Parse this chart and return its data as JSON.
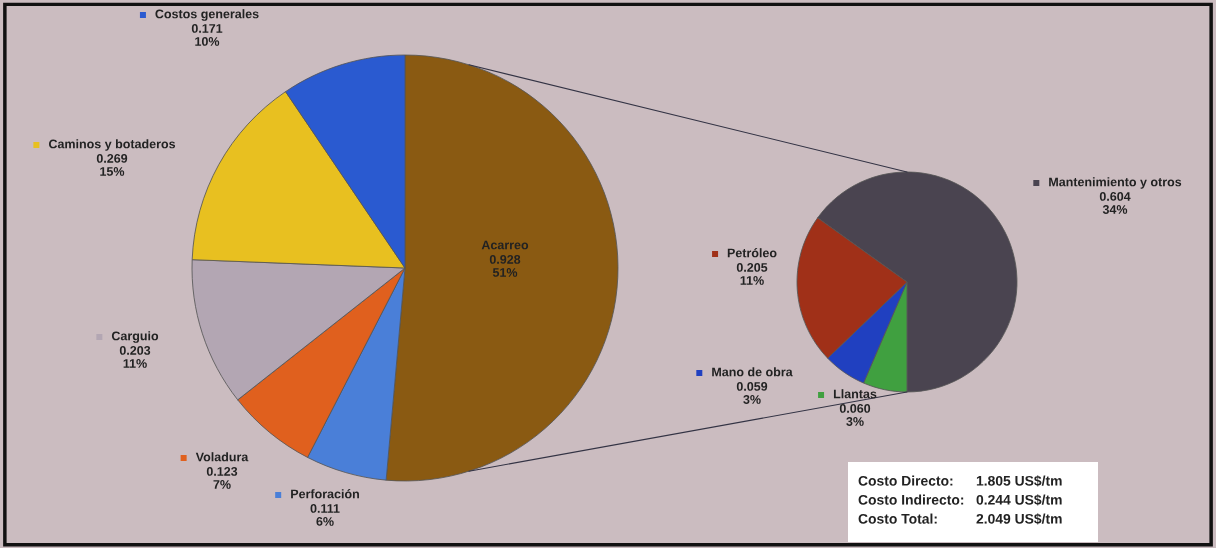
{
  "chart_data": [
    {
      "type": "pie",
      "categories": [
        "Acarreo",
        "Perforación",
        "Voladura",
        "Carguio",
        "Caminos y botaderos",
        "Costos generales"
      ],
      "values": [
        0.928,
        0.111,
        0.123,
        0.203,
        0.269,
        0.171
      ],
      "colors": [
        "#8a5a12",
        "#4a7fd8",
        "#e0601e",
        "#b3a6b3",
        "#e8c020",
        "#2a5ad0"
      ],
      "value_labels": [
        "0.928\n51%",
        "0.111\n6%",
        "0.123\n7%",
        "0.203\n11%",
        "0.269\n15%",
        "0.171\n10%"
      ],
      "legend": "left"
    },
    {
      "type": "pie",
      "categories": [
        "Mantenimiento y otros",
        "Llantas",
        "Mano de obra",
        "Petróleo"
      ],
      "values": [
        0.604,
        0.06,
        0.059,
        0.205
      ],
      "colors": [
        "#4a4450",
        "#40a040",
        "#2040c0",
        "#a03018"
      ],
      "value_labels": [
        "0.604\n34%",
        "0.060\n3%",
        "0.059\n3%",
        "0.205\n11%"
      ],
      "legend": "bottom right",
      "annotations": [
        "Costo Directo:",
        "1.805 US$/tm",
        "Costo Indirecto:",
        "0.244 US$/tm",
        "Costo Total:",
        "2.049 US$/tm"
      ]
    }
  ]
}
